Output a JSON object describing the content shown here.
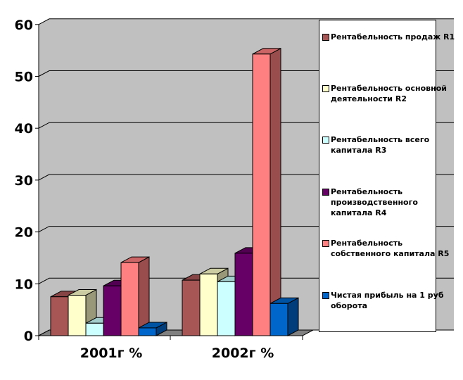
{
  "chart_data": {
    "type": "bar",
    "categories": [
      "2001г %",
      "2002г %"
    ],
    "ylim": [
      0,
      60
    ],
    "yticks": [
      "0",
      "10",
      "20",
      "30",
      "40",
      "50",
      "60"
    ],
    "grid": true,
    "legend_position": "right",
    "series": [
      {
        "name": "Рентабельность продаж R1",
        "color": "#A85555",
        "values": [
          7.5,
          10.7
        ]
      },
      {
        "name": "Рентабельность основной деятельности R2",
        "color": "#FFFFCC",
        "values": [
          7.8,
          11.9
        ]
      },
      {
        "name": "Рентабельность всего капитала R3",
        "color": "#CCFFFF",
        "values": [
          2.4,
          10.4
        ]
      },
      {
        "name": "Рентабельность производственного капитала R4",
        "color": "#660066",
        "values": [
          9.6,
          15.9
        ]
      },
      {
        "name": "Рентабельность собственного капитала R5",
        "color": "#FF8080",
        "values": [
          14.1,
          54.3
        ]
      },
      {
        "name": "Чистая прибыль на 1 руб оборота",
        "color": "#0066CC",
        "values": [
          1.5,
          6.2
        ]
      }
    ]
  }
}
